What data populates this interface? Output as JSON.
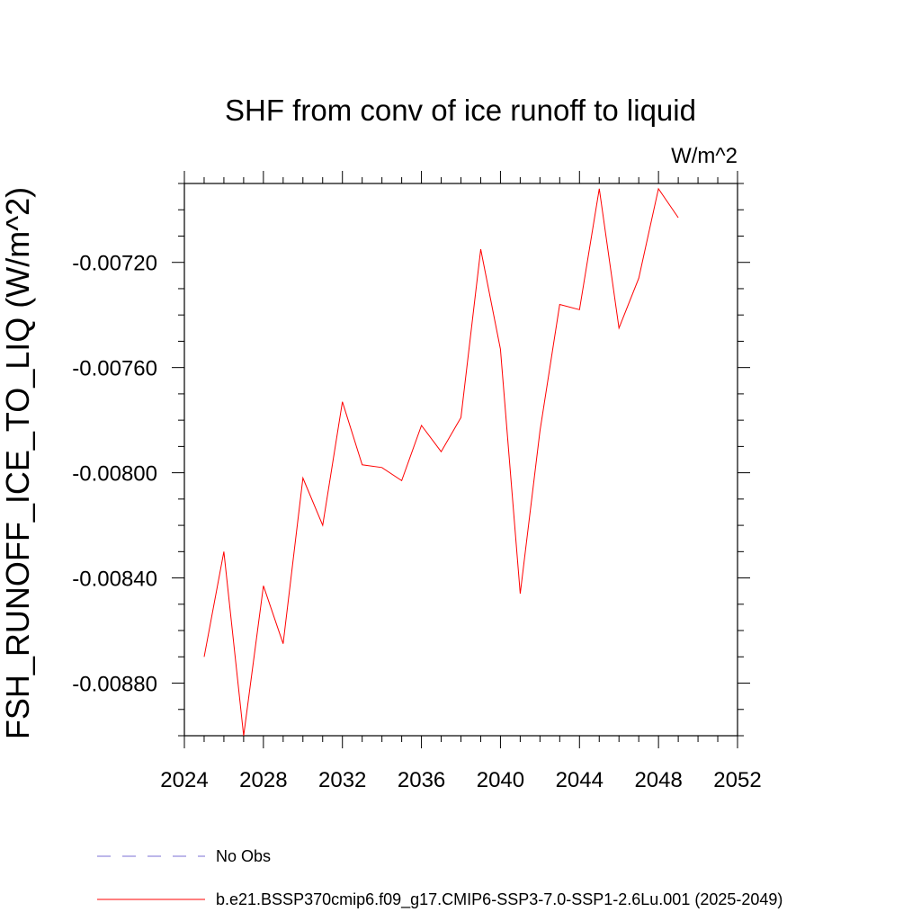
{
  "chart_data": {
    "type": "line",
    "title": "SHF from conv of ice runoff to liquid",
    "units": "W/m^2",
    "ylabel": "FSH_RUNOFF_ICE_TO_LIQ  (W/m^2)",
    "xlabel": "",
    "xlim": [
      2024,
      2052
    ],
    "ylim": [
      -0.009,
      -0.0069
    ],
    "x_ticks": [
      2024,
      2028,
      2032,
      2036,
      2040,
      2044,
      2048,
      2052
    ],
    "x_tick_labels": [
      "2024",
      "2028",
      "2032",
      "2036",
      "2040",
      "2044",
      "2048",
      "2052"
    ],
    "y_ticks": [
      -0.0088,
      -0.0084,
      -0.008,
      -0.0076,
      -0.0072
    ],
    "y_tick_labels": [
      "-0.00880",
      "-0.00840",
      "-0.00800",
      "-0.00760",
      "-0.00720"
    ],
    "grid": false,
    "series": [
      {
        "name": "b.e21.BSSP370cmip6.f09_g17.CMIP6-SSP3-7.0-SSP1-2.6Lu.001 (2025-2049)",
        "color": "#ff0000",
        "x": [
          2025,
          2026,
          2027,
          2028,
          2029,
          2030,
          2031,
          2032,
          2033,
          2034,
          2035,
          2036,
          2037,
          2038,
          2039,
          2040,
          2041,
          2042,
          2043,
          2044,
          2045,
          2046,
          2047,
          2048,
          2049
        ],
        "values": [
          -0.0087,
          -0.0083,
          -0.009,
          -0.00843,
          -0.00865,
          -0.00802,
          -0.0082,
          -0.00773,
          -0.00797,
          -0.00798,
          -0.00803,
          -0.00782,
          -0.00792,
          -0.00779,
          -0.00715,
          -0.00753,
          -0.00846,
          -0.00784,
          -0.00736,
          -0.00738,
          -0.00692,
          -0.00745,
          -0.00726,
          -0.00692,
          -0.00703
        ]
      }
    ],
    "legend": [
      {
        "label": "No Obs",
        "color": "#7b6fd6",
        "style": "dashed"
      },
      {
        "label": "b.e21.BSSP370cmip6.f09_g17.CMIP6-SSP3-7.0-SSP1-2.6Lu.001 (2025-2049)",
        "color": "#ff0000",
        "style": "solid"
      }
    ]
  }
}
